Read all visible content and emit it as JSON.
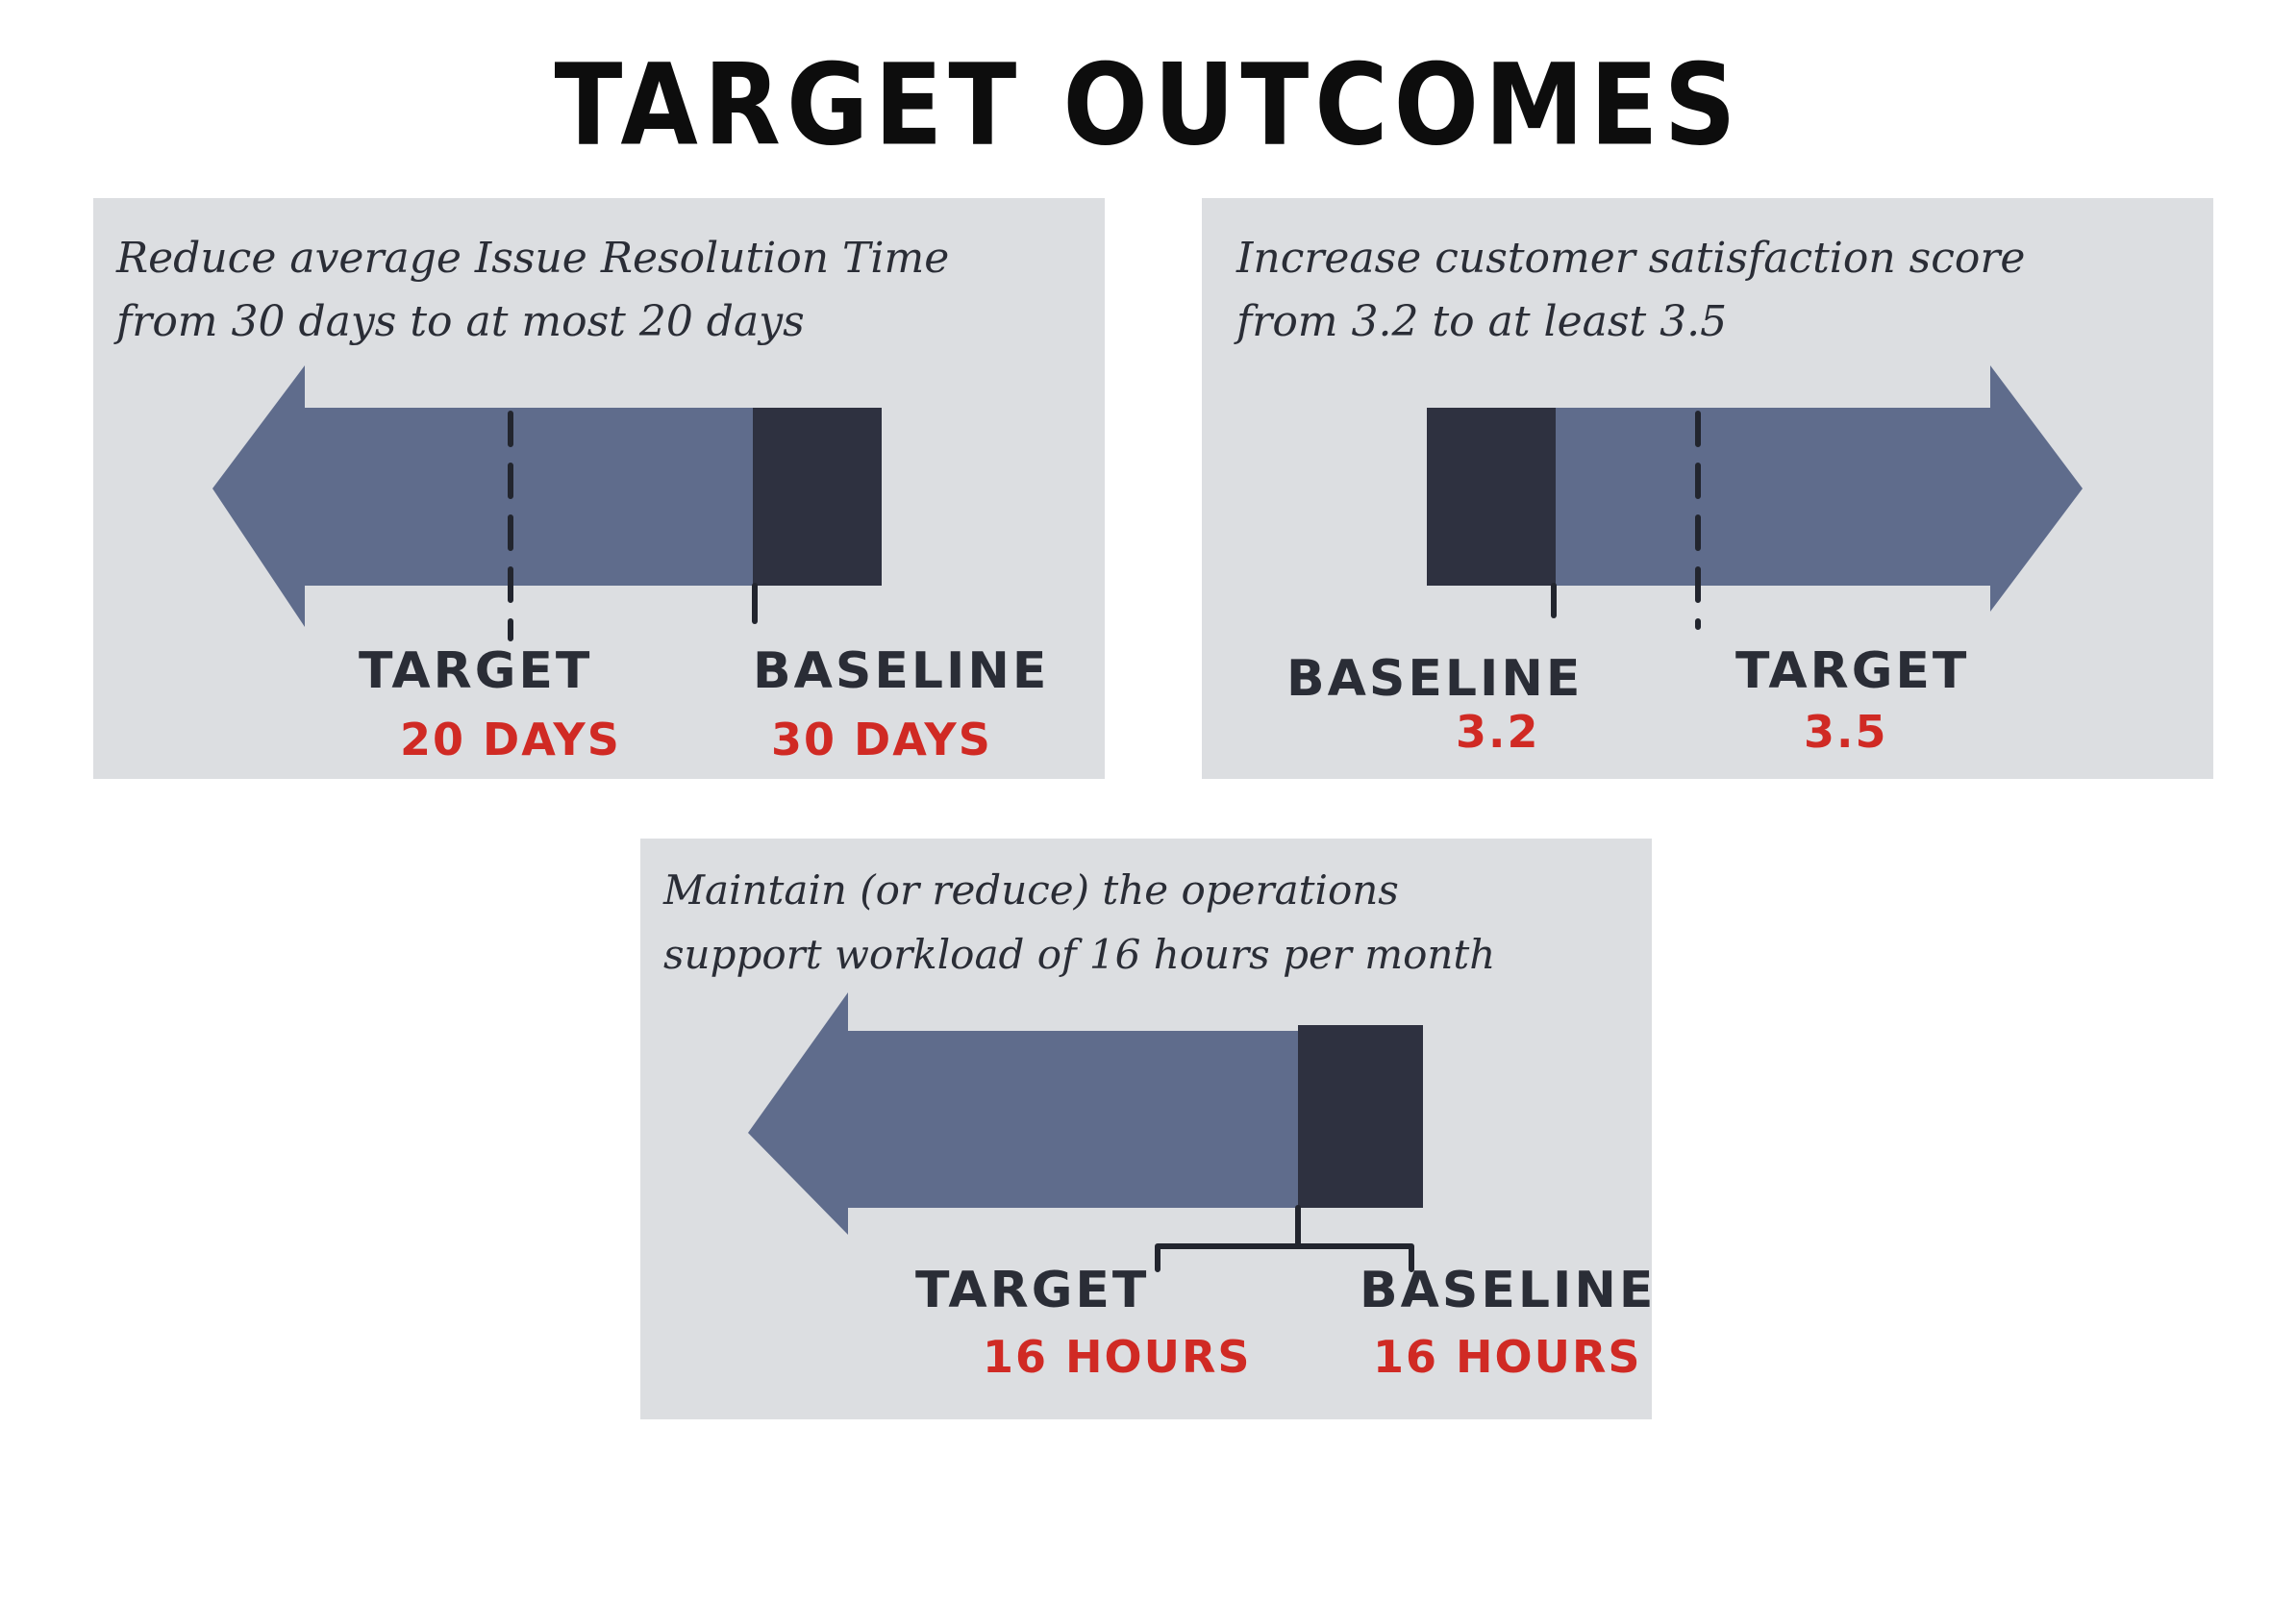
{
  "title": "TARGET OUTCOMES",
  "colors": {
    "card_bg": "#dcdee1",
    "arrow_fill": "#5f6c8c",
    "baseline_block": "#2e3140",
    "label_text": "#2a2d36",
    "value_text": "#d02a24"
  },
  "outcomes": [
    {
      "line1": "Reduce average Issue Resolution Time",
      "line2": "from 30 days to at most 20 days",
      "direction": "left",
      "target": {
        "label": "TARGET",
        "value": "20 DAYS"
      },
      "baseline": {
        "label": "BASELINE",
        "value": "30 DAYS"
      }
    },
    {
      "line1": "Increase customer satisfaction score",
      "line2": "from 3.2 to at least 3.5",
      "direction": "right",
      "baseline": {
        "label": "BASELINE",
        "value": "3.2"
      },
      "target": {
        "label": "TARGET",
        "value": "3.5"
      }
    },
    {
      "line1": "Maintain (or reduce) the operations",
      "line2": "support workload of 16 hours per month",
      "direction": "left",
      "target": {
        "label": "TARGET",
        "value": "16 HOURS"
      },
      "baseline": {
        "label": "BASELINE",
        "value": "16 HOURS"
      }
    }
  ]
}
